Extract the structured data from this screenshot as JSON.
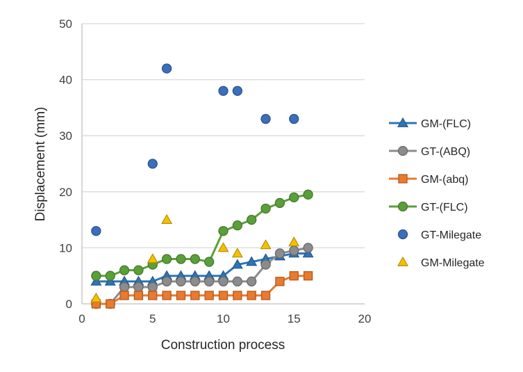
{
  "chart_data": {
    "type": "line",
    "xlabel": "Construction process",
    "ylabel": "Displacement (mm)",
    "xlim": [
      0,
      20
    ],
    "ylim": [
      0,
      50
    ],
    "xticks": [
      0,
      5,
      10,
      15,
      20
    ],
    "yticks": [
      0,
      10,
      20,
      30,
      40,
      50
    ],
    "grid": "horizontal",
    "legend_position": "right",
    "series": [
      {
        "name": "GM-(FLC)",
        "marker": "triangle",
        "line": true,
        "color": "#2E75B6",
        "points": [
          [
            1,
            4
          ],
          [
            2,
            4
          ],
          [
            3,
            4
          ],
          [
            4,
            4
          ],
          [
            5,
            4
          ],
          [
            6,
            5
          ],
          [
            7,
            5
          ],
          [
            8,
            5
          ],
          [
            9,
            5
          ],
          [
            10,
            5
          ],
          [
            11,
            7
          ],
          [
            12,
            7.5
          ],
          [
            13,
            8
          ],
          [
            14,
            8.5
          ],
          [
            15,
            9
          ],
          [
            16,
            9
          ]
        ]
      },
      {
        "name": "GT-(ABQ)",
        "marker": "circle",
        "line": true,
        "color": "#8C8C8C",
        "points": [
          [
            1,
            0
          ],
          [
            2,
            0
          ],
          [
            3,
            3
          ],
          [
            4,
            3
          ],
          [
            5,
            3
          ],
          [
            6,
            4
          ],
          [
            7,
            4
          ],
          [
            8,
            4
          ],
          [
            9,
            4
          ],
          [
            10,
            4
          ],
          [
            11,
            4
          ],
          [
            12,
            4
          ],
          [
            13,
            7
          ],
          [
            14,
            9
          ],
          [
            15,
            9.5
          ],
          [
            16,
            10
          ]
        ]
      },
      {
        "name": "GM-(abq)",
        "marker": "square",
        "line": true,
        "color": "#E97A2E",
        "points": [
          [
            1,
            0
          ],
          [
            2,
            0
          ],
          [
            3,
            1.5
          ],
          [
            4,
            1.5
          ],
          [
            5,
            1.5
          ],
          [
            6,
            1.5
          ],
          [
            7,
            1.5
          ],
          [
            8,
            1.5
          ],
          [
            9,
            1.5
          ],
          [
            10,
            1.5
          ],
          [
            11,
            1.5
          ],
          [
            12,
            1.5
          ],
          [
            13,
            1.5
          ],
          [
            14,
            4
          ],
          [
            15,
            5
          ],
          [
            16,
            5
          ]
        ]
      },
      {
        "name": "GT-(FLC)",
        "marker": "circle",
        "line": true,
        "color": "#5AA03A",
        "points": [
          [
            1,
            5
          ],
          [
            2,
            5
          ],
          [
            3,
            6
          ],
          [
            4,
            6
          ],
          [
            5,
            7
          ],
          [
            6,
            8
          ],
          [
            7,
            8
          ],
          [
            8,
            8
          ],
          [
            9,
            7.5
          ],
          [
            10,
            13
          ],
          [
            11,
            14
          ],
          [
            12,
            15
          ],
          [
            13,
            17
          ],
          [
            14,
            18
          ],
          [
            15,
            19
          ],
          [
            16,
            19.5
          ]
        ]
      },
      {
        "name": "GT-Milegate",
        "marker": "circle",
        "line": false,
        "color": "#3A6EBE",
        "points": [
          [
            1,
            13
          ],
          [
            5,
            25
          ],
          [
            6,
            42
          ],
          [
            10,
            38
          ],
          [
            11,
            38
          ],
          [
            13,
            33
          ],
          [
            15,
            33
          ]
        ]
      },
      {
        "name": "GM-Milegate",
        "marker": "triangle",
        "line": false,
        "color": "#F5C000",
        "points": [
          [
            1,
            1
          ],
          [
            5,
            8
          ],
          [
            6,
            15
          ],
          [
            10,
            10
          ],
          [
            11,
            9
          ],
          [
            13,
            10.5
          ],
          [
            15,
            11
          ]
        ]
      }
    ]
  }
}
